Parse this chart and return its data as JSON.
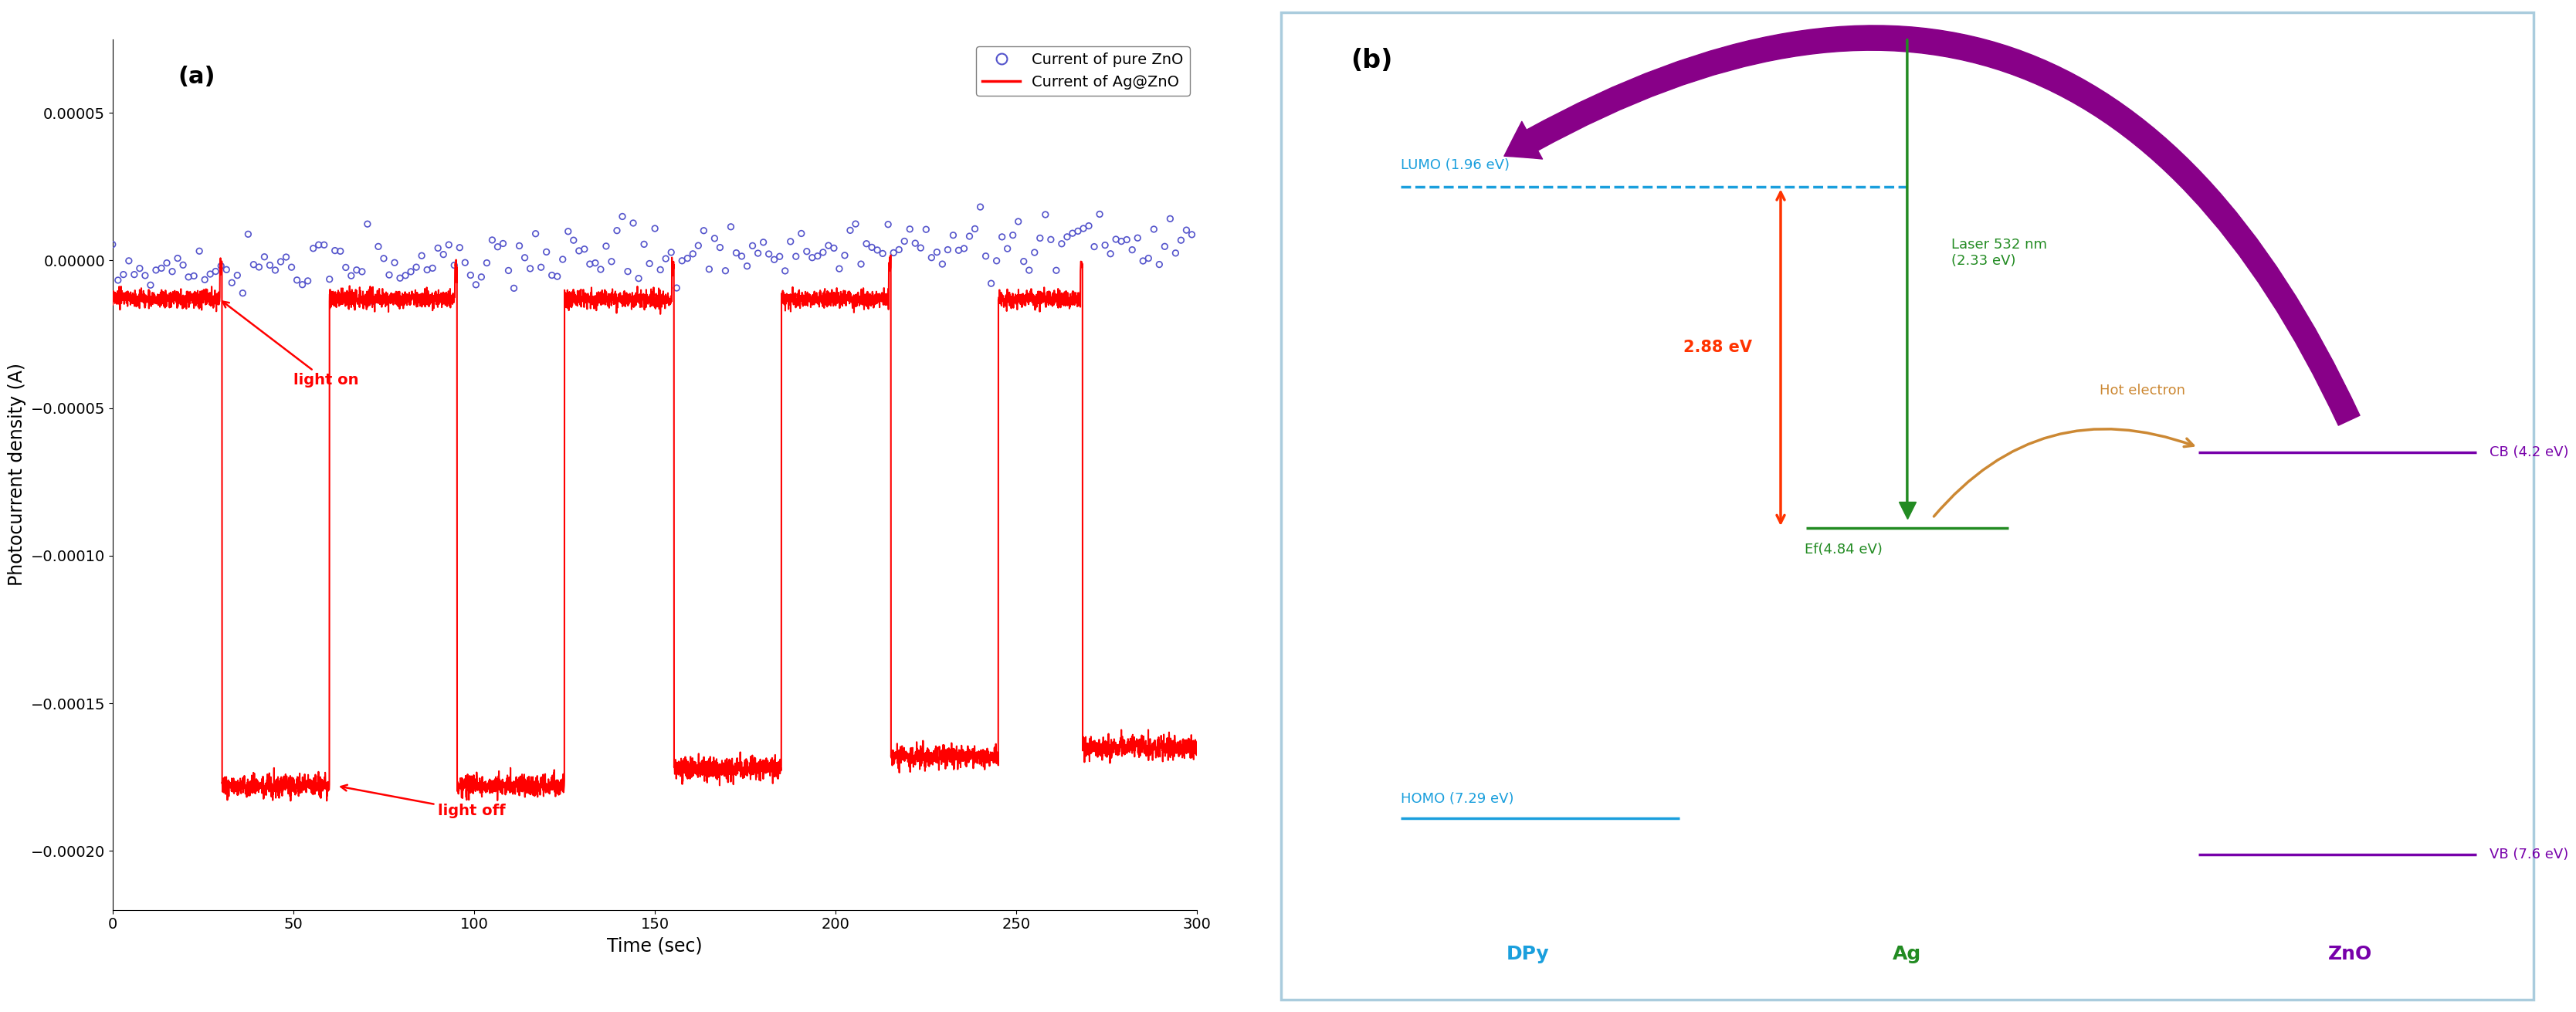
{
  "panel_a": {
    "title": "(a)",
    "xlabel": "Time (sec)",
    "ylabel": "Photocurrent density (A)",
    "xlim": [
      0,
      300
    ],
    "ylim": [
      -0.00022,
      7.5e-05
    ],
    "yticks": [
      5e-05,
      0.0,
      -5e-05,
      -0.0001,
      -0.00015,
      -0.0002
    ],
    "xticks": [
      0,
      50,
      100,
      150,
      200,
      250,
      300
    ],
    "zno_color": "#5555cc",
    "agzno_color": "#ff0000",
    "light_on_annotation": "light on",
    "light_off_annotation": "light off"
  },
  "panel_b": {
    "title": "(b)",
    "border_color": "#aaccdd",
    "lumo_label": "LUMO (1.96 eV)",
    "homo_label": "HOMO (7.29 eV)",
    "ef_label": "Ef(4.84 eV)",
    "cb_label": "CB (4.2 eV)",
    "vb_label": "VB (7.6 eV)",
    "dpy_label": "DPy",
    "ag_label": "Ag",
    "zno_label": "ZnO",
    "energy_label": "2.88 eV",
    "laser_label": "Laser 532 nm\n(2.33 eV)",
    "hot_electron_label": "Hot electron",
    "lumo_color": "#1a9fdd",
    "homo_color": "#1a9fdd",
    "ef_color": "#228B22",
    "cb_color": "#7700aa",
    "vb_color": "#7700aa",
    "dpy_color": "#1a9fdd",
    "ag_color": "#228B22",
    "zno_color": "#7700aa",
    "energy_arrow_color": "#ff3300",
    "laser_arrow_color": "#228B22",
    "laser_text_color": "#228B22",
    "hot_electron_color": "#cc8833",
    "big_arrow_color": "#880088"
  }
}
